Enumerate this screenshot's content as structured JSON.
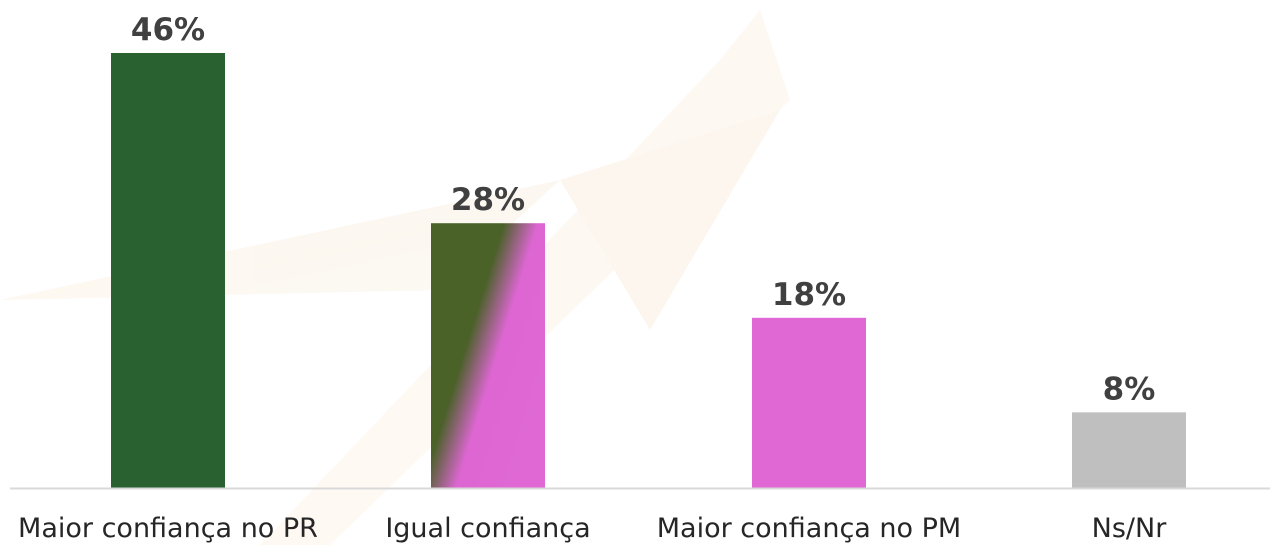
{
  "chart_data": {
    "type": "bar",
    "categories": [
      "Maior confiança no PR",
      "Igual confiança",
      "Maior confiança no PM",
      "Ns/Nr"
    ],
    "values": [
      46,
      28,
      18,
      8
    ],
    "value_labels": [
      "46%",
      "28%",
      "18%",
      "8%"
    ],
    "colors": [
      "#2a6131",
      "gradient",
      "#df68d5",
      "#bfbfbf"
    ],
    "gradient_colors": [
      "#4a6128",
      "#df68d5"
    ],
    "ylim": [
      0,
      46
    ],
    "grid": false,
    "legend": "none"
  }
}
